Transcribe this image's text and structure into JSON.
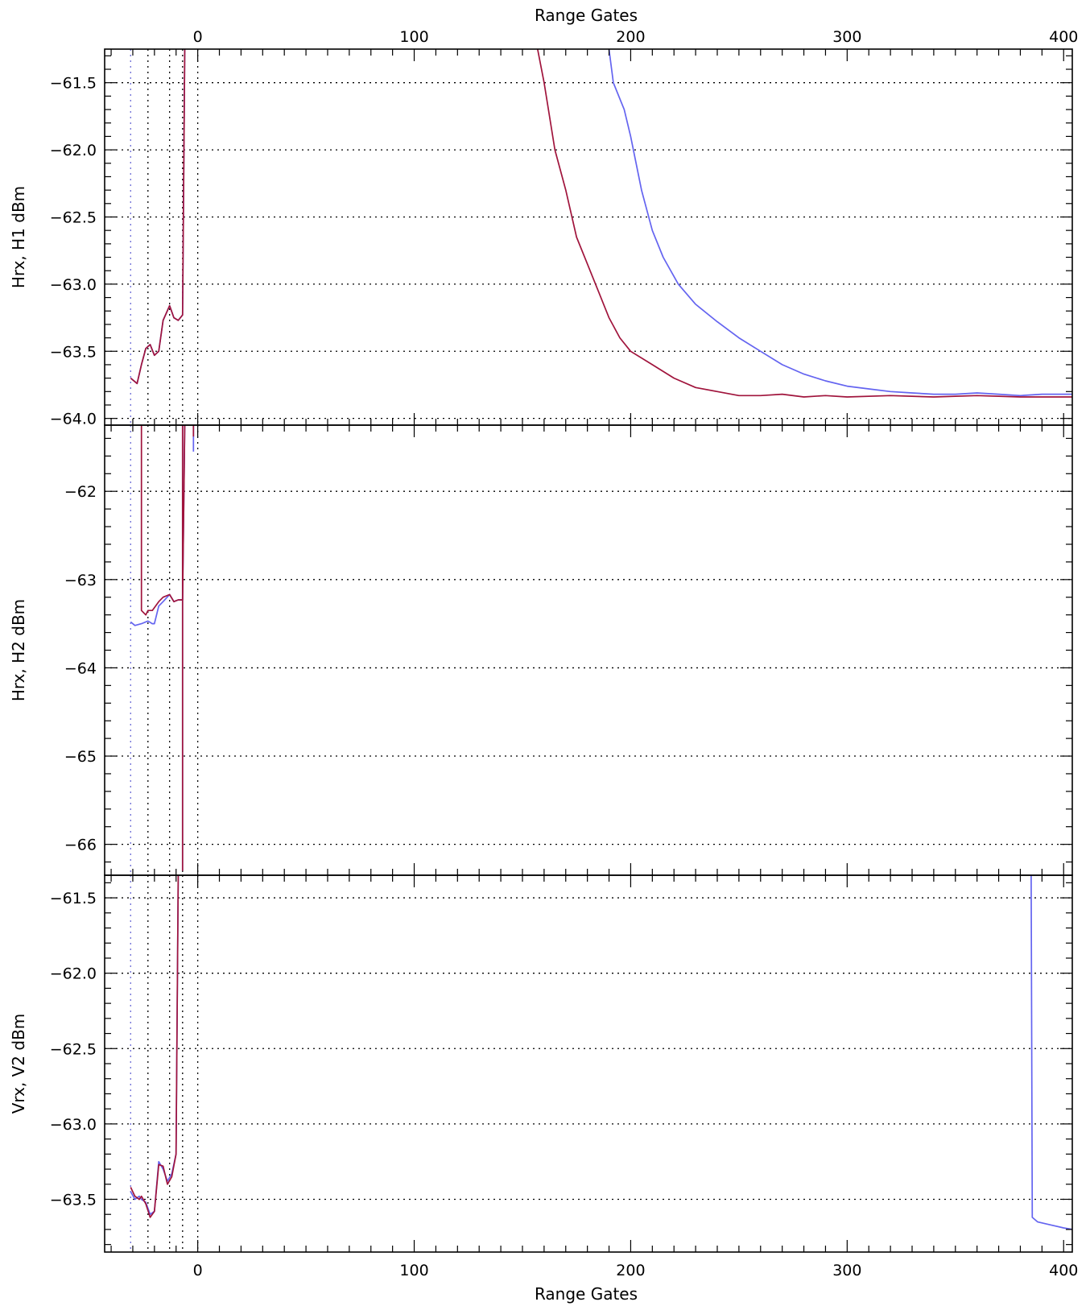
{
  "chart_data": {
    "type": "line",
    "x_axis": {
      "label": "Range Gates",
      "xlim": [
        -43,
        404
      ],
      "ticks": [
        0,
        100,
        200,
        300,
        400
      ],
      "minor_step": 10
    },
    "colors": {
      "blue": "#6464f0",
      "red": "#a0143c",
      "axis": "#000000"
    },
    "vertical_dotted_lines": [
      -31,
      -23,
      -13,
      -7,
      0
    ],
    "panels": [
      {
        "ylabel": "Hrx, H1 dBm",
        "ylim": [
          -64.05,
          -61.25
        ],
        "yticks": [
          -61.5,
          -62.0,
          -62.5,
          -63.0,
          -63.5,
          -64.0
        ],
        "ytick_labels": [
          "−61.5",
          "−62.0",
          "−62.5",
          "−63.0",
          "−63.5",
          "−64.0"
        ],
        "grid": true,
        "series": [
          {
            "color": "blue",
            "segments": [
              [
                [
                  -31,
                  -63.7
                ],
                [
                  -28,
                  -63.74
                ],
                [
                  -26,
                  -63.6
                ],
                [
                  -24,
                  -63.48
                ],
                [
                  -22,
                  -63.45
                ],
                [
                  -20,
                  -63.53
                ],
                [
                  -18,
                  -63.5
                ],
                [
                  -16,
                  -63.27
                ],
                [
                  -13,
                  -63.16
                ],
                [
                  -11,
                  -63.25
                ],
                [
                  -9,
                  -63.27
                ],
                [
                  -7,
                  -63.23
                ],
                [
                  -6,
                  -61.25
                ]
              ],
              [
                [
                  190,
                  -61.25
                ],
                [
                  192,
                  -61.5
                ],
                [
                  197,
                  -61.7
                ],
                [
                  200,
                  -61.9
                ],
                [
                  205,
                  -62.3
                ],
                [
                  210,
                  -62.6
                ],
                [
                  215,
                  -62.8
                ],
                [
                  222,
                  -63.0
                ],
                [
                  230,
                  -63.15
                ],
                [
                  240,
                  -63.28
                ],
                [
                  250,
                  -63.4
                ],
                [
                  260,
                  -63.5
                ],
                [
                  270,
                  -63.6
                ],
                [
                  280,
                  -63.67
                ],
                [
                  290,
                  -63.72
                ],
                [
                  300,
                  -63.76
                ],
                [
                  310,
                  -63.78
                ],
                [
                  320,
                  -63.8
                ],
                [
                  330,
                  -63.81
                ],
                [
                  340,
                  -63.82
                ],
                [
                  350,
                  -63.82
                ],
                [
                  360,
                  -63.81
                ],
                [
                  370,
                  -63.82
                ],
                [
                  380,
                  -63.83
                ],
                [
                  390,
                  -63.82
                ],
                [
                  404,
                  -63.82
                ]
              ]
            ]
          },
          {
            "color": "red",
            "segments": [
              [
                [
                  -31,
                  -63.7
                ],
                [
                  -28,
                  -63.74
                ],
                [
                  -26,
                  -63.6
                ],
                [
                  -24,
                  -63.48
                ],
                [
                  -22,
                  -63.45
                ],
                [
                  -20,
                  -63.53
                ],
                [
                  -18,
                  -63.5
                ],
                [
                  -16,
                  -63.27
                ],
                [
                  -13,
                  -63.16
                ],
                [
                  -11,
                  -63.25
                ],
                [
                  -9,
                  -63.27
                ],
                [
                  -7,
                  -63.23
                ],
                [
                  -6,
                  -61.25
                ]
              ],
              [
                [
                  157,
                  -61.25
                ],
                [
                  160,
                  -61.5
                ],
                [
                  165,
                  -62.0
                ],
                [
                  170,
                  -62.3
                ],
                [
                  175,
                  -62.65
                ],
                [
                  180,
                  -62.85
                ],
                [
                  185,
                  -63.05
                ],
                [
                  190,
                  -63.25
                ],
                [
                  195,
                  -63.4
                ],
                [
                  200,
                  -63.5
                ],
                [
                  210,
                  -63.6
                ],
                [
                  220,
                  -63.7
                ],
                [
                  230,
                  -63.77
                ],
                [
                  240,
                  -63.8
                ],
                [
                  250,
                  -63.83
                ],
                [
                  260,
                  -63.83
                ],
                [
                  270,
                  -63.82
                ],
                [
                  280,
                  -63.84
                ],
                [
                  290,
                  -63.83
                ],
                [
                  300,
                  -63.84
                ],
                [
                  320,
                  -63.83
                ],
                [
                  340,
                  -63.84
                ],
                [
                  360,
                  -63.83
                ],
                [
                  380,
                  -63.84
                ],
                [
                  404,
                  -63.84
                ]
              ]
            ]
          }
        ]
      },
      {
        "ylabel": "Hrx, H2 dBm",
        "ylim": [
          -66.35,
          -61.25
        ],
        "yticks": [
          -62,
          -63,
          -64,
          -65,
          -66
        ],
        "ytick_labels": [
          "−62",
          "−63",
          "−64",
          "−65",
          "−66"
        ],
        "grid": true,
        "series": [
          {
            "color": "blue",
            "segments": [
              [
                [
                  -31,
                  -63.48
                ],
                [
                  -29,
                  -63.52
                ],
                [
                  -26,
                  -63.5
                ],
                [
                  -23,
                  -63.47
                ],
                [
                  -21,
                  -63.5
                ],
                [
                  -20,
                  -63.5
                ],
                [
                  -18,
                  -63.3
                ],
                [
                  -16,
                  -63.25
                ],
                [
                  -13,
                  -63.17
                ],
                [
                  -11,
                  -63.25
                ],
                [
                  -9,
                  -63.23
                ],
                [
                  -7,
                  -63.23
                ],
                [
                  -6,
                  -61.25
                ]
              ],
              [
                [
                  -7,
                  -61.25
                ],
                [
                  -7,
                  -66.3
                ]
              ],
              [
                [
                  -2,
                  -61.25
                ],
                [
                  -2,
                  -61.55
                ]
              ]
            ]
          },
          {
            "color": "red",
            "segments": [
              [
                [
                  -26,
                  -61.25
                ],
                [
                  -26,
                  -63.35
                ],
                [
                  -24,
                  -63.4
                ],
                [
                  -23,
                  -63.35
                ],
                [
                  -21,
                  -63.35
                ],
                [
                  -18,
                  -63.25
                ],
                [
                  -16,
                  -63.2
                ],
                [
                  -13,
                  -63.17
                ],
                [
                  -11,
                  -63.25
                ],
                [
                  -9,
                  -63.23
                ],
                [
                  -7,
                  -63.23
                ],
                [
                  -6,
                  -61.25
                ]
              ],
              [
                [
                  -7,
                  -61.25
                ],
                [
                  -7,
                  -66.3
                ]
              ],
              [
                [
                  -2,
                  -61.25
                ],
                [
                  -2,
                  -61.38
                ]
              ]
            ]
          }
        ]
      },
      {
        "ylabel": "Vrx, V2 dBm",
        "ylim": [
          -63.85,
          -61.35
        ],
        "yticks": [
          -61.5,
          -62.0,
          -62.5,
          -63.0,
          -63.5
        ],
        "ytick_labels": [
          "−61.5",
          "−62.0",
          "−62.5",
          "−63.0",
          "−63.5"
        ],
        "grid": true,
        "series": [
          {
            "color": "blue",
            "segments": [
              [
                [
                  -31,
                  -63.45
                ],
                [
                  -29,
                  -63.5
                ],
                [
                  -27,
                  -63.48
                ],
                [
                  -26,
                  -63.5
                ],
                [
                  -24,
                  -63.52
                ],
                [
                  -22,
                  -63.6
                ],
                [
                  -20,
                  -63.58
                ],
                [
                  -18,
                  -63.25
                ],
                [
                  -16,
                  -63.3
                ],
                [
                  -14,
                  -63.38
                ],
                [
                  -12,
                  -63.33
                ],
                [
                  -10,
                  -63.2
                ],
                [
                  -9,
                  -61.35
                ]
              ],
              [
                [
                  385,
                  -61.35
                ],
                [
                  385.5,
                  -63.62
                ],
                [
                  388,
                  -63.65
                ],
                [
                  394,
                  -63.67
                ],
                [
                  400,
                  -63.69
                ],
                [
                  404,
                  -63.7
                ]
              ]
            ]
          },
          {
            "color": "red",
            "segments": [
              [
                [
                  -31,
                  -63.42
                ],
                [
                  -29,
                  -63.48
                ],
                [
                  -27,
                  -63.5
                ],
                [
                  -26,
                  -63.48
                ],
                [
                  -24,
                  -63.53
                ],
                [
                  -22,
                  -63.62
                ],
                [
                  -20,
                  -63.58
                ],
                [
                  -18,
                  -63.27
                ],
                [
                  -16,
                  -63.28
                ],
                [
                  -14,
                  -63.4
                ],
                [
                  -12,
                  -63.35
                ],
                [
                  -10,
                  -63.2
                ],
                [
                  -9,
                  -61.35
                ]
              ]
            ]
          }
        ]
      }
    ]
  }
}
